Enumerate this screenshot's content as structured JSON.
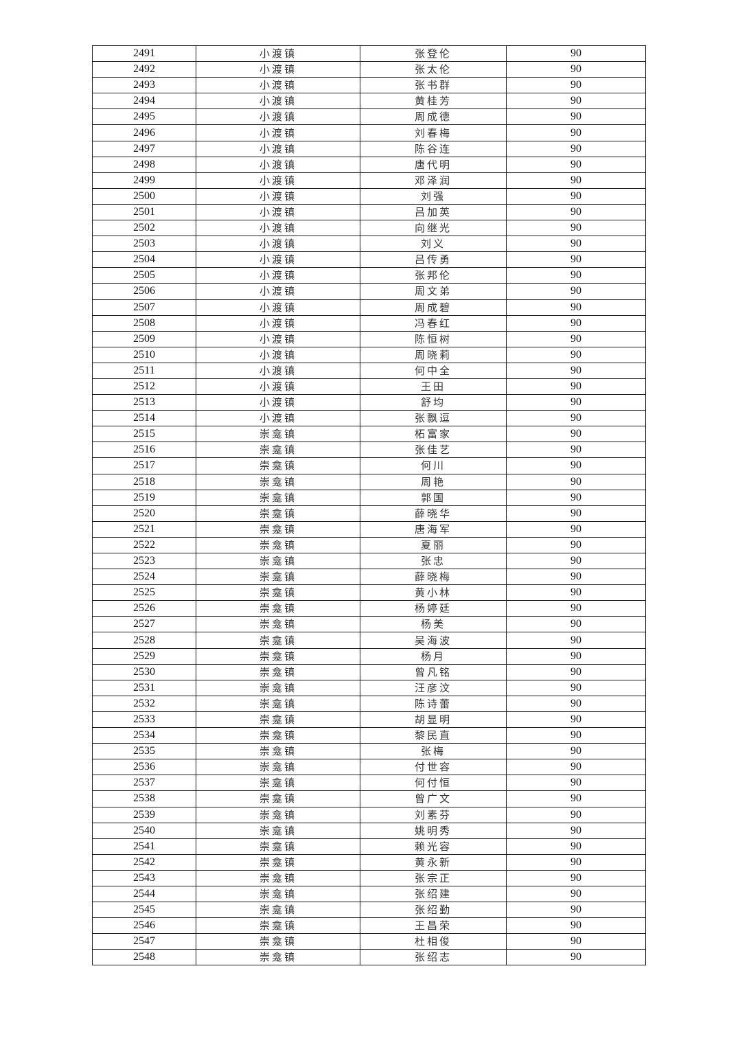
{
  "table": {
    "rows": [
      [
        "2491",
        "小渡镇",
        "张登伦",
        "90"
      ],
      [
        "2492",
        "小渡镇",
        "张太伦",
        "90"
      ],
      [
        "2493",
        "小渡镇",
        "张书群",
        "90"
      ],
      [
        "2494",
        "小渡镇",
        "黄桂芳",
        "90"
      ],
      [
        "2495",
        "小渡镇",
        "周成德",
        "90"
      ],
      [
        "2496",
        "小渡镇",
        "刘春梅",
        "90"
      ],
      [
        "2497",
        "小渡镇",
        "陈谷连",
        "90"
      ],
      [
        "2498",
        "小渡镇",
        "唐代明",
        "90"
      ],
      [
        "2499",
        "小渡镇",
        "邓泽润",
        "90"
      ],
      [
        "2500",
        "小渡镇",
        "刘强",
        "90"
      ],
      [
        "2501",
        "小渡镇",
        "吕加英",
        "90"
      ],
      [
        "2502",
        "小渡镇",
        "向继光",
        "90"
      ],
      [
        "2503",
        "小渡镇",
        "刘义",
        "90"
      ],
      [
        "2504",
        "小渡镇",
        "吕传勇",
        "90"
      ],
      [
        "2505",
        "小渡镇",
        "张邦伦",
        "90"
      ],
      [
        "2506",
        "小渡镇",
        "周文弟",
        "90"
      ],
      [
        "2507",
        "小渡镇",
        "周成碧",
        "90"
      ],
      [
        "2508",
        "小渡镇",
        "冯春红",
        "90"
      ],
      [
        "2509",
        "小渡镇",
        "陈恒树",
        "90"
      ],
      [
        "2510",
        "小渡镇",
        "周晓莉",
        "90"
      ],
      [
        "2511",
        "小渡镇",
        "何中全",
        "90"
      ],
      [
        "2512",
        "小渡镇",
        "王田",
        "90"
      ],
      [
        "2513",
        "小渡镇",
        "舒均",
        "90"
      ],
      [
        "2514",
        "小渡镇",
        "张飘逗",
        "90"
      ],
      [
        "2515",
        "崇龛镇",
        "柘富家",
        "90"
      ],
      [
        "2516",
        "崇龛镇",
        "张佳艺",
        "90"
      ],
      [
        "2517",
        "崇龛镇",
        "何川",
        "90"
      ],
      [
        "2518",
        "崇龛镇",
        "周艳",
        "90"
      ],
      [
        "2519",
        "崇龛镇",
        "郭国",
        "90"
      ],
      [
        "2520",
        "崇龛镇",
        "薛晓华",
        "90"
      ],
      [
        "2521",
        "崇龛镇",
        "唐海军",
        "90"
      ],
      [
        "2522",
        "崇龛镇",
        "夏丽",
        "90"
      ],
      [
        "2523",
        "崇龛镇",
        "张忠",
        "90"
      ],
      [
        "2524",
        "崇龛镇",
        "薛晓梅",
        "90"
      ],
      [
        "2525",
        "崇龛镇",
        "黄小林",
        "90"
      ],
      [
        "2526",
        "崇龛镇",
        "杨婷廷",
        "90"
      ],
      [
        "2527",
        "崇龛镇",
        "杨美",
        "90"
      ],
      [
        "2528",
        "崇龛镇",
        "吴海波",
        "90"
      ],
      [
        "2529",
        "崇龛镇",
        "杨月",
        "90"
      ],
      [
        "2530",
        "崇龛镇",
        "曾凡铭",
        "90"
      ],
      [
        "2531",
        "崇龛镇",
        "汪彦汶",
        "90"
      ],
      [
        "2532",
        "崇龛镇",
        "陈诗蕾",
        "90"
      ],
      [
        "2533",
        "崇龛镇",
        "胡显明",
        "90"
      ],
      [
        "2534",
        "崇龛镇",
        "黎民直",
        "90"
      ],
      [
        "2535",
        "崇龛镇",
        "张梅",
        "90"
      ],
      [
        "2536",
        "崇龛镇",
        "付世容",
        "90"
      ],
      [
        "2537",
        "崇龛镇",
        "何付恒",
        "90"
      ],
      [
        "2538",
        "崇龛镇",
        "曾广文",
        "90"
      ],
      [
        "2539",
        "崇龛镇",
        "刘素芬",
        "90"
      ],
      [
        "2540",
        "崇龛镇",
        "姚明秀",
        "90"
      ],
      [
        "2541",
        "崇龛镇",
        "赖光容",
        "90"
      ],
      [
        "2542",
        "崇龛镇",
        "黄永新",
        "90"
      ],
      [
        "2543",
        "崇龛镇",
        "张宗正",
        "90"
      ],
      [
        "2544",
        "崇龛镇",
        "张绍建",
        "90"
      ],
      [
        "2545",
        "崇龛镇",
        "张绍勤",
        "90"
      ],
      [
        "2546",
        "崇龛镇",
        "王昌荣",
        "90"
      ],
      [
        "2547",
        "崇龛镇",
        "杜相俊",
        "90"
      ],
      [
        "2548",
        "崇龛镇",
        "张绍志",
        "90"
      ]
    ]
  }
}
